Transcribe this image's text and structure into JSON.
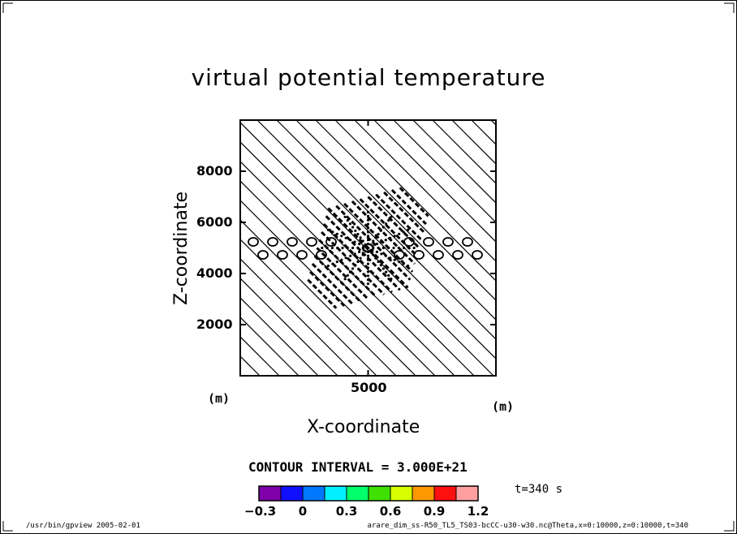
{
  "chart_data": {
    "type": "contour",
    "title": "virtual potential temperature",
    "xlabel": "X-coordinate",
    "ylabel": "Z-coordinate",
    "x_unit": "(m)",
    "y_unit": "(m)",
    "xlim": [
      0,
      10000
    ],
    "ylim": [
      0,
      10000
    ],
    "x_ticks": [
      5000
    ],
    "x_tick_labels": [
      "5000"
    ],
    "y_ticks": [
      2000,
      4000,
      6000,
      8000
    ],
    "y_tick_labels": [
      "2000",
      "4000",
      "6000",
      "8000"
    ],
    "disturbance_center": {
      "x": 5000,
      "z": 5000
    },
    "contour_interval_label": "CONTOUR INTERVAL = 3.000E+21",
    "time_label": "t=340 s",
    "colorbar": {
      "colors": [
        "#7f00a8",
        "#1010ff",
        "#0078ff",
        "#00f0ff",
        "#00ff6a",
        "#40e000",
        "#d8ff00",
        "#ff9800",
        "#ff1010",
        "#ff9f9f"
      ],
      "tick_labels": [
        "−0.3",
        "0",
        "0.3",
        "0.6",
        "0.9",
        "1.2"
      ]
    }
  },
  "footer": {
    "left": "/usr/bin/gpview  2005-02-01",
    "right": "arare_dim_ss-R50_TL5_TS03-bcCC-u30-w30.nc@Theta,x=0:10000,z=0:10000,t=340"
  }
}
